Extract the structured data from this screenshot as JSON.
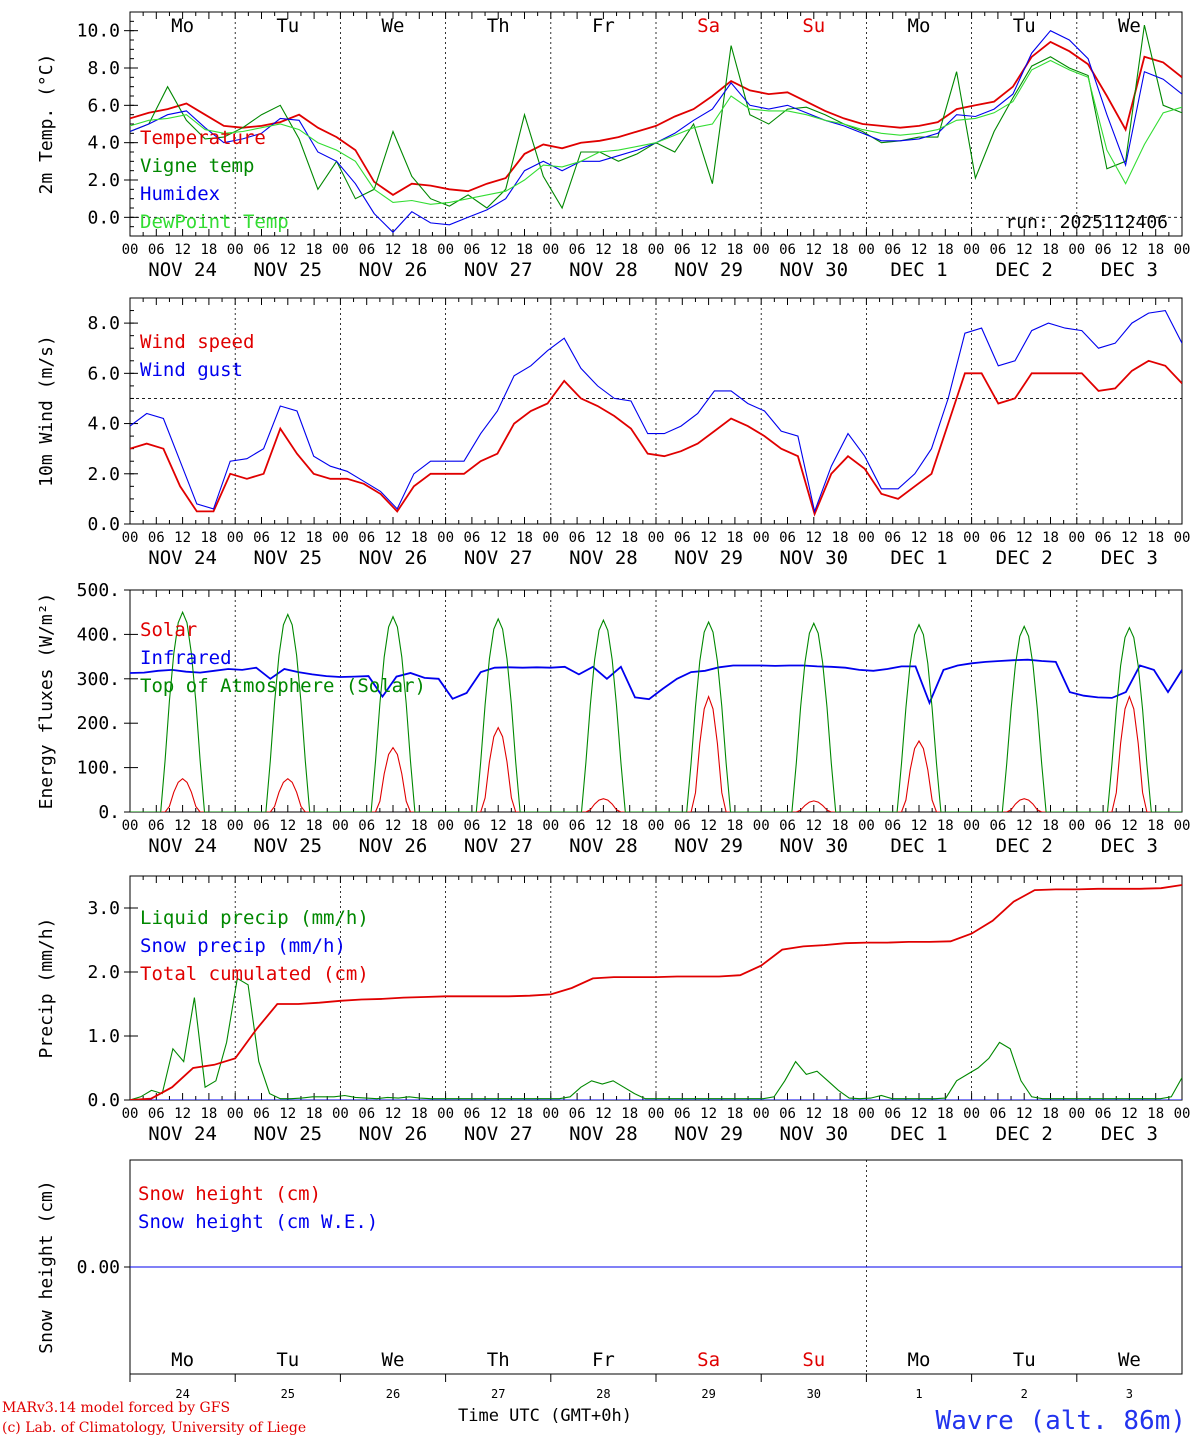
{
  "days_top": [
    {
      "label": "Mo",
      "color": "#000000"
    },
    {
      "label": "Tu",
      "color": "#000000"
    },
    {
      "label": "We",
      "color": "#000000"
    },
    {
      "label": "Th",
      "color": "#000000"
    },
    {
      "label": "Fr",
      "color": "#000000"
    },
    {
      "label": "Sa",
      "color": "#e00000"
    },
    {
      "label": "Su",
      "color": "#e00000"
    },
    {
      "label": "Mo",
      "color": "#000000"
    },
    {
      "label": "Tu",
      "color": "#000000"
    },
    {
      "label": "We",
      "color": "#000000"
    }
  ],
  "date_labels": [
    "NOV 24",
    "NOV 25",
    "NOV 26",
    "NOV 27",
    "NOV 28",
    "NOV 29",
    "NOV 30",
    "DEC  1",
    "DEC  2",
    "DEC  3"
  ],
  "hour_labels": [
    "00",
    "06",
    "12",
    "18"
  ],
  "last_hour_label": "00",
  "day_numbers": [
    "24",
    "25",
    "26",
    "27",
    "28",
    "29",
    "30",
    "1",
    "2",
    "3"
  ],
  "colors": {
    "red": "#e00000",
    "green": "#008800",
    "blue": "#0000ee",
    "lightgreen": "#33dd33"
  },
  "footer": {
    "credit_line1": "MARv3.14 model forced by GFS",
    "credit_line2": "(c) Lab. of Climatology, University of Liege",
    "time_label": "Time UTC (GMT+0h)",
    "site": "Wavre (alt. 86m)"
  },
  "chart_data": [
    {
      "type": "line",
      "ylabel": "2m Temp. (°C)",
      "ylim": [
        -1,
        11
      ],
      "yticks": [
        "0.0",
        "2.0",
        "4.0",
        "6.0",
        "8.0",
        "10.0"
      ],
      "ytick_values": [
        0,
        2,
        4,
        6,
        8,
        10
      ],
      "run": "run: 2025112406",
      "hline": 0,
      "series": [
        {
          "name": "Temperature",
          "color": "#e00000",
          "values": [
            5.3,
            5.6,
            5.8,
            6.1,
            5.5,
            4.9,
            4.8,
            4.9,
            5.1,
            5.5,
            4.8,
            4.3,
            3.6,
            1.9,
            1.2,
            1.8,
            1.7,
            1.5,
            1.4,
            1.8,
            2.1,
            3.4,
            3.9,
            3.7,
            4.0,
            4.1,
            4.3,
            4.6,
            4.9,
            5.4,
            5.8,
            6.5,
            7.3,
            6.8,
            6.6,
            6.7,
            6.2,
            5.7,
            5.3,
            5.0,
            4.9,
            4.8,
            4.9,
            5.1,
            5.8,
            6.0,
            6.2,
            7.0,
            8.6,
            9.4,
            8.9,
            8.2,
            6.5,
            4.7,
            8.6,
            8.3,
            7.5
          ]
        },
        {
          "name": "Vigne temp",
          "color": "#008800",
          "values": [
            4.6,
            5.0,
            7.0,
            5.2,
            4.2,
            4.3,
            4.8,
            5.5,
            6.0,
            4.2,
            1.5,
            3.0,
            1.0,
            1.5,
            4.6,
            2.2,
            1.0,
            0.6,
            1.2,
            0.5,
            1.5,
            5.5,
            2.2,
            0.5,
            3.5,
            3.5,
            3.0,
            3.4,
            4.0,
            3.5,
            5.0,
            1.8,
            9.2,
            5.5,
            5.0,
            5.8,
            5.9,
            5.5,
            5.0,
            4.6,
            4.0,
            4.1,
            4.3,
            4.3,
            7.8,
            2.1,
            4.6,
            6.4,
            8.1,
            8.6,
            8.0,
            7.6,
            2.6,
            3.0,
            10.3,
            6.0,
            5.6
          ]
        },
        {
          "name": "Humidex",
          "color": "#0000ee",
          "values": [
            4.6,
            5.0,
            5.5,
            5.7,
            4.8,
            4.0,
            4.2,
            4.5,
            5.3,
            5.2,
            3.5,
            3.0,
            1.8,
            0.2,
            -0.8,
            0.3,
            -0.3,
            -0.4,
            0.0,
            0.4,
            1.0,
            2.5,
            3.0,
            2.5,
            3.0,
            3.0,
            3.3,
            3.6,
            4.0,
            4.5,
            5.2,
            5.8,
            7.2,
            6.0,
            5.8,
            6.0,
            5.6,
            5.2,
            4.9,
            4.5,
            4.1,
            4.1,
            4.2,
            4.5,
            5.5,
            5.4,
            5.8,
            6.6,
            8.8,
            10.0,
            9.5,
            8.5,
            5.5,
            2.8,
            7.8,
            7.4,
            6.6
          ]
        },
        {
          "name": "DewPoint Temp",
          "color": "#33dd33",
          "values": [
            4.9,
            5.2,
            5.3,
            5.5,
            4.7,
            4.5,
            4.6,
            4.8,
            5.0,
            4.7,
            4.0,
            3.6,
            3.0,
            1.5,
            0.8,
            0.9,
            0.7,
            0.8,
            1.0,
            1.2,
            1.4,
            2.0,
            2.8,
            2.7,
            3.0,
            3.5,
            3.6,
            3.8,
            4.0,
            4.4,
            4.8,
            5.0,
            6.5,
            5.8,
            5.7,
            5.7,
            5.5,
            5.2,
            5.0,
            4.7,
            4.5,
            4.4,
            4.5,
            4.7,
            5.2,
            5.3,
            5.6,
            6.2,
            7.9,
            8.4,
            7.9,
            7.5,
            3.6,
            1.8,
            3.9,
            5.6,
            5.9
          ]
        }
      ]
    },
    {
      "type": "line",
      "ylabel": "10m Wind (m/s)",
      "ylim": [
        0,
        9
      ],
      "yticks": [
        "0.0",
        "2.0",
        "4.0",
        "6.0",
        "8.0"
      ],
      "ytick_values": [
        0,
        2,
        4,
        6,
        8
      ],
      "hline": 5,
      "series": [
        {
          "name": "Wind speed",
          "color": "#e00000",
          "values": [
            3.0,
            3.2,
            3.0,
            1.5,
            0.5,
            0.5,
            2.0,
            1.8,
            2.0,
            3.8,
            2.8,
            2.0,
            1.8,
            1.8,
            1.6,
            1.2,
            0.5,
            1.5,
            2.0,
            2.0,
            2.0,
            2.5,
            2.8,
            4.0,
            4.5,
            4.8,
            5.7,
            5.0,
            4.7,
            4.3,
            3.8,
            2.8,
            2.7,
            2.9,
            3.2,
            3.7,
            4.2,
            3.9,
            3.5,
            3.0,
            2.7,
            0.4,
            2.0,
            2.7,
            2.2,
            1.2,
            1.0,
            1.5,
            2.0,
            4.0,
            6.0,
            6.0,
            4.8,
            5.0,
            6.0,
            6.0,
            6.0,
            6.0,
            5.3,
            5.4,
            6.1,
            6.5,
            6.3,
            5.6
          ]
        },
        {
          "name": "Wind gust",
          "color": "#0000ee",
          "values": [
            3.9,
            4.4,
            4.2,
            2.5,
            0.8,
            0.6,
            2.5,
            2.6,
            3.0,
            4.7,
            4.5,
            2.7,
            2.3,
            2.1,
            1.7,
            1.3,
            0.6,
            2.0,
            2.5,
            2.5,
            2.5,
            3.6,
            4.5,
            5.9,
            6.3,
            6.9,
            7.4,
            6.2,
            5.5,
            5.0,
            4.9,
            3.6,
            3.6,
            3.9,
            4.4,
            5.3,
            5.3,
            4.8,
            4.5,
            3.7,
            3.5,
            0.5,
            2.3,
            3.6,
            2.7,
            1.4,
            1.4,
            2.0,
            3.0,
            5.0,
            7.6,
            7.8,
            6.3,
            6.5,
            7.7,
            8.0,
            7.8,
            7.7,
            7.0,
            7.2,
            8.0,
            8.4,
            8.5,
            7.2
          ]
        }
      ]
    },
    {
      "type": "line",
      "ylabel": "Energy fluxes (W/m²)",
      "ylim": [
        0,
        500
      ],
      "yticks": [
        "0.",
        "100.",
        "200.",
        "300.",
        "400.",
        "500."
      ],
      "ytick_values": [
        0,
        100,
        200,
        300,
        400,
        500
      ],
      "series": [
        {
          "name": "Solar",
          "color": "#e00000",
          "peaks": [
            75,
            75,
            145,
            190,
            30,
            260,
            25,
            160,
            30,
            260
          ]
        },
        {
          "name": "Infrared",
          "color": "#0000ee",
          "values": [
            313,
            314,
            318,
            320,
            316,
            314,
            318,
            322,
            320,
            325,
            300,
            322,
            315,
            310,
            306,
            304,
            305,
            306,
            260,
            305,
            313,
            302,
            300,
            255,
            268,
            315,
            325,
            326,
            325,
            326,
            325,
            327,
            310,
            327,
            300,
            327,
            258,
            254,
            278,
            300,
            315,
            318,
            326,
            330,
            330,
            330,
            329,
            330,
            330,
            328,
            327,
            325,
            320,
            318,
            322,
            328,
            328,
            246,
            320,
            330,
            335,
            338,
            340,
            342,
            343,
            340,
            338,
            270,
            262,
            258,
            257,
            270,
            330,
            320,
            270,
            320
          ]
        },
        {
          "name": "Top of Atmosphere (Solar)",
          "color": "#008800",
          "peaks": [
            450,
            445,
            440,
            435,
            432,
            428,
            425,
            422,
            418,
            415
          ]
        }
      ]
    },
    {
      "type": "line",
      "ylabel": "Precip (mm/h)",
      "ylim": [
        0,
        3.5
      ],
      "yticks": [
        "0.0",
        "1.0",
        "2.0",
        "3.0"
      ],
      "ytick_values": [
        0,
        1,
        2,
        3
      ],
      "series": [
        {
          "name": "Liquid precip (mm/h)",
          "color": "#008800",
          "values": [
            0,
            0.05,
            0.15,
            0.1,
            0.8,
            0.6,
            1.6,
            0.2,
            0.3,
            0.9,
            1.9,
            1.8,
            0.6,
            0.1,
            0.02,
            0.02,
            0.03,
            0.05,
            0.05,
            0.05,
            0.07,
            0.04,
            0.03,
            0.02,
            0.04,
            0.03,
            0.05,
            0.03,
            0.02,
            0.02,
            0.02,
            0.02,
            0.02,
            0.02,
            0.02,
            0.02,
            0.02,
            0.02,
            0.02,
            0.02,
            0.02,
            0.05,
            0.2,
            0.3,
            0.25,
            0.3,
            0.2,
            0.1,
            0.02,
            0.02,
            0.02,
            0.02,
            0.02,
            0.02,
            0.02,
            0.02,
            0.02,
            0.02,
            0.02,
            0.02,
            0.05,
            0.3,
            0.6,
            0.4,
            0.45,
            0.3,
            0.15,
            0.03,
            0.02,
            0.03,
            0.07,
            0.02,
            0.02,
            0.02,
            0.02,
            0.02,
            0.03,
            0.3,
            0.4,
            0.5,
            0.65,
            0.9,
            0.8,
            0.3,
            0.05,
            0.02,
            0.02,
            0.02,
            0.02,
            0.02,
            0.02,
            0.02,
            0.02,
            0.02,
            0.02,
            0.02,
            0.02,
            0.05,
            0.35
          ]
        },
        {
          "name": "Snow precip (mm/h)",
          "color": "#0000ee",
          "values": [
            0
          ]
        },
        {
          "name": "Total cumulated (cm)",
          "color": "#e00000",
          "values": [
            0,
            0.02,
            0.2,
            0.5,
            0.55,
            0.65,
            1.1,
            1.5,
            1.5,
            1.52,
            1.55,
            1.57,
            1.58,
            1.6,
            1.61,
            1.62,
            1.62,
            1.62,
            1.62,
            1.63,
            1.65,
            1.75,
            1.9,
            1.92,
            1.92,
            1.92,
            1.93,
            1.93,
            1.93,
            1.95,
            2.1,
            2.35,
            2.4,
            2.42,
            2.45,
            2.46,
            2.46,
            2.47,
            2.47,
            2.48,
            2.6,
            2.8,
            3.1,
            3.28,
            3.29,
            3.29,
            3.3,
            3.3,
            3.3,
            3.31,
            3.36
          ]
        }
      ]
    },
    {
      "type": "line",
      "ylabel": "Snow height (cm)",
      "ylim": [
        -1,
        1
      ],
      "yticks": [
        "0.00"
      ],
      "ytick_values": [
        0
      ],
      "series": [
        {
          "name": "Snow height (cm)",
          "color": "#e00000",
          "values": [
            0,
            0
          ]
        },
        {
          "name": "Snow height (cm W.E.)",
          "color": "#0000ee",
          "values": [
            0,
            0
          ]
        }
      ]
    }
  ]
}
